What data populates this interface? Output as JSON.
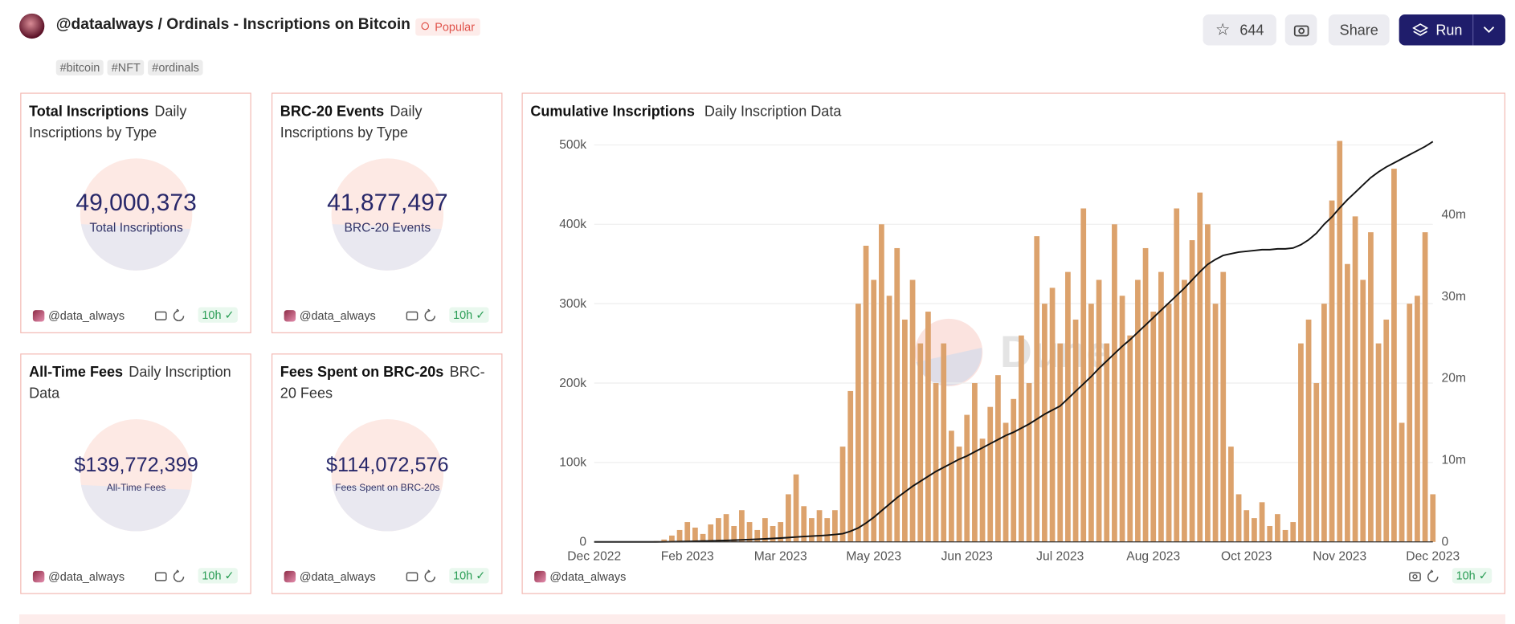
{
  "header": {
    "title": "@dataalways / Ordinals - Inscriptions on Bitcoin",
    "badge": "Popular",
    "tags": [
      "#bitcoin",
      "#NFT",
      "#ordinals"
    ],
    "stars": 644,
    "share": "Share",
    "run": "Run"
  },
  "counters": [
    {
      "title": "Total Inscriptions",
      "subtitle": "Daily Inscriptions by Type",
      "value": "49,000,373",
      "label": "Total Inscriptions",
      "author": "@data_always",
      "age": "10h"
    },
    {
      "title": "BRC-20 Events",
      "subtitle": "Daily Inscriptions by Type",
      "value": "41,877,497",
      "label": "BRC-20 Events",
      "author": "@data_always",
      "age": "10h"
    },
    {
      "title": "All-Time Fees",
      "subtitle": "Daily Inscription Data",
      "value": "$139,772,399",
      "label": "All-Time Fees",
      "author": "@data_always",
      "age": "10h"
    },
    {
      "title": "Fees Spent on BRC-20s",
      "subtitle": "BRC-20 Fees",
      "value": "$114,072,576",
      "label": "Fees Spent on BRC-20s",
      "author": "@data_always",
      "age": "10h"
    }
  ],
  "chart_data": {
    "type": "bar",
    "title": "Cumulative Inscriptions",
    "subtitle": "Daily Inscription Data",
    "watermark": "Dune",
    "author": "@data_always",
    "age": "10h",
    "categories": [
      "Dec 2022",
      null,
      null,
      null,
      null,
      null,
      null,
      null,
      null,
      null,
      null,
      null,
      "Feb 2023",
      null,
      null,
      null,
      null,
      null,
      null,
      null,
      null,
      null,
      null,
      null,
      "Mar 2023",
      null,
      null,
      null,
      null,
      null,
      null,
      null,
      null,
      null,
      null,
      null,
      "May 2023",
      null,
      null,
      null,
      null,
      null,
      null,
      null,
      null,
      null,
      null,
      null,
      "Jun 2023",
      null,
      null,
      null,
      null,
      null,
      null,
      null,
      null,
      null,
      null,
      null,
      "Jul 2023",
      null,
      null,
      null,
      null,
      null,
      null,
      null,
      null,
      null,
      null,
      null,
      "Aug 2023",
      null,
      null,
      null,
      null,
      null,
      null,
      null,
      null,
      null,
      null,
      null,
      "Oct 2023",
      null,
      null,
      null,
      null,
      null,
      null,
      null,
      null,
      null,
      null,
      null,
      "Nov 2023",
      null,
      null,
      null,
      null,
      null,
      null,
      null,
      null,
      null,
      null,
      null,
      "Dec 2023"
    ],
    "series": [
      {
        "type": "bar",
        "color": "#dca26c",
        "values": [
          0,
          0,
          0,
          0,
          0,
          0,
          0,
          0,
          1000,
          3000,
          8000,
          15000,
          25000,
          18000,
          10000,
          22000,
          30000,
          35000,
          20000,
          40000,
          25000,
          15000,
          30000,
          20000,
          25000,
          60000,
          85000,
          45000,
          30000,
          40000,
          30000,
          40000,
          120000,
          190000,
          300000,
          373000,
          330000,
          400000,
          310000,
          370000,
          280000,
          330000,
          250000,
          290000,
          200000,
          250000,
          140000,
          120000,
          160000,
          200000,
          130000,
          170000,
          210000,
          150000,
          180000,
          260000,
          200000,
          385000,
          300000,
          320000,
          250000,
          340000,
          280000,
          420000,
          300000,
          330000,
          250000,
          400000,
          310000,
          260000,
          330000,
          370000,
          290000,
          340000,
          300000,
          420000,
          330000,
          380000,
          440000,
          400000,
          300000,
          340000,
          120000,
          60000,
          40000,
          30000,
          50000,
          20000,
          35000,
          15000,
          25000,
          250000,
          280000,
          200000,
          300000,
          430000,
          505000,
          350000,
          410000,
          330000,
          390000,
          250000,
          280000,
          470000,
          150000,
          300000,
          310000,
          390000,
          60000
        ]
      },
      {
        "type": "line",
        "color": "#111111",
        "axis": "y2",
        "values": [
          0,
          0,
          0,
          0,
          0,
          0,
          0,
          0,
          0,
          10000,
          20000,
          40000,
          60000,
          80000,
          100000,
          120000,
          150000,
          180000,
          210000,
          250000,
          290000,
          330000,
          370000,
          420000,
          470000,
          530000,
          600000,
          660000,
          710000,
          760000,
          820000,
          900000,
          1000000,
          1300000,
          1700000,
          2300000,
          3000000,
          3800000,
          4600000,
          5400000,
          6100000,
          6800000,
          7400000,
          8000000,
          8600000,
          9100000,
          9600000,
          10100000,
          10500000,
          11000000,
          11500000,
          12000000,
          12500000,
          13000000,
          13400000,
          13900000,
          14400000,
          15000000,
          15600000,
          16100000,
          16600000,
          17500000,
          18400000,
          19300000,
          20200000,
          21200000,
          22100000,
          23000000,
          23900000,
          24700000,
          25600000,
          26500000,
          27400000,
          28300000,
          29200000,
          30100000,
          31000000,
          32000000,
          33000000,
          33900000,
          34500000,
          35000000,
          35200000,
          35400000,
          35500000,
          35600000,
          35700000,
          35700000,
          35800000,
          35800000,
          35900000,
          36300000,
          36900000,
          37700000,
          38800000,
          39700000,
          40800000,
          41800000,
          42700000,
          43600000,
          44500000,
          45200000,
          45800000,
          46300000,
          46800000,
          47300000,
          47800000,
          48300000,
          48900000
        ]
      }
    ],
    "ylim": [
      0,
      500000
    ],
    "yticks": [
      0,
      {
        "value": 100000,
        "label": "100k"
      },
      {
        "value": 200000,
        "label": "200k"
      },
      {
        "value": 300000,
        "label": "300k"
      },
      {
        "value": 400000,
        "label": "400k"
      },
      {
        "value": 500000,
        "label": "500k"
      }
    ],
    "y2lim": [
      0,
      48500000
    ],
    "y2ticks": [
      0,
      {
        "value": 10000000,
        "label": "10m"
      },
      {
        "value": 20000000,
        "label": "20m"
      },
      {
        "value": 30000000,
        "label": "30m"
      },
      {
        "value": 40000000,
        "label": "40m"
      }
    ],
    "grid": true
  }
}
